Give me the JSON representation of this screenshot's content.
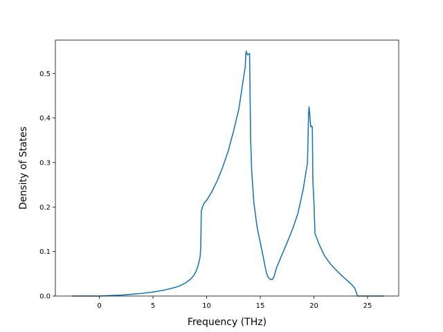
{
  "chart_data": {
    "type": "line",
    "title": "",
    "xlabel": "Frequency (THz)",
    "ylabel": "Density of States",
    "xlim": [
      -4.1,
      27.9
    ],
    "ylim": [
      0,
      0.575
    ],
    "xticks": [
      0,
      5,
      10,
      15,
      20,
      25
    ],
    "yticks": [
      0.0,
      0.1,
      0.2,
      0.3,
      0.4,
      0.5
    ],
    "xtick_labels": [
      "0",
      "5",
      "10",
      "15",
      "20",
      "25"
    ],
    "ytick_labels": [
      "0.0",
      "0.1",
      "0.2",
      "0.3",
      "0.4",
      "0.5"
    ],
    "grid": false,
    "line_color": "#1f77b4",
    "series": [
      {
        "x": [
          -2.5,
          -1,
          0,
          1,
          2,
          3,
          4,
          5,
          6,
          7,
          7.5,
          8,
          8.5,
          8.8,
          9.0,
          9.2,
          9.3,
          9.4,
          9.45,
          9.5,
          9.6,
          9.8,
          10,
          10.5,
          11,
          11.5,
          12,
          12.5,
          13,
          13.5,
          13.6,
          13.65,
          13.7,
          13.75,
          13.8,
          13.9,
          14.0,
          14.05,
          14.1,
          14.2,
          14.4,
          14.7,
          15.0,
          15.3,
          15.5,
          15.6,
          15.7,
          15.8,
          16.0,
          16.1,
          16.2,
          16.3,
          16.5,
          16.8,
          17.0,
          17.5,
          18.0,
          18.5,
          19.0,
          19.2,
          19.4,
          19.5,
          19.55,
          19.6,
          19.7,
          19.8,
          19.85,
          19.9,
          20.0,
          20.1,
          20.3,
          20.5,
          21.0,
          21.5,
          22.0,
          22.5,
          23.0,
          23.5,
          23.8,
          24.0,
          24.05,
          24.5,
          26.5
        ],
        "y": [
          0,
          0,
          0,
          0.001,
          0.002,
          0.004,
          0.006,
          0.009,
          0.013,
          0.019,
          0.023,
          0.029,
          0.038,
          0.046,
          0.055,
          0.068,
          0.078,
          0.09,
          0.11,
          0.19,
          0.2,
          0.21,
          0.215,
          0.235,
          0.26,
          0.29,
          0.325,
          0.37,
          0.42,
          0.5,
          0.515,
          0.545,
          0.55,
          0.545,
          0.542,
          0.543,
          0.545,
          0.45,
          0.35,
          0.28,
          0.21,
          0.155,
          0.12,
          0.085,
          0.06,
          0.05,
          0.044,
          0.04,
          0.037,
          0.037,
          0.04,
          0.045,
          0.063,
          0.08,
          0.092,
          0.12,
          0.15,
          0.185,
          0.24,
          0.27,
          0.3,
          0.41,
          0.425,
          0.41,
          0.38,
          0.382,
          0.38,
          0.26,
          0.21,
          0.14,
          0.128,
          0.115,
          0.09,
          0.073,
          0.06,
          0.048,
          0.037,
          0.026,
          0.018,
          0.005,
          0,
          0,
          0
        ]
      }
    ]
  }
}
